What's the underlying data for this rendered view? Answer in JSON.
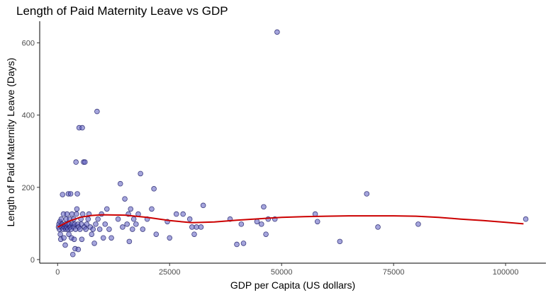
{
  "chart_data": {
    "type": "scatter",
    "title": "Length of Paid Maternity Leave vs GDP",
    "xlabel": "GDP per Capita (US dollars)",
    "ylabel": "Length of Paid Maternity Leave (Days)",
    "xlim": [
      -4000,
      109000
    ],
    "ylim": [
      -10,
      660
    ],
    "xticks": [
      0,
      25000,
      50000,
      75000,
      100000
    ],
    "xtick_labels": [
      "0",
      "25000",
      "50000",
      "75000",
      "100000"
    ],
    "yticks": [
      0,
      200,
      400,
      600
    ],
    "ytick_labels": [
      "0",
      "200",
      "400",
      "600"
    ],
    "grid": false,
    "colors": {
      "point_fill": "#5b5bc0",
      "point_stroke": "#1a1a66",
      "trend": "#cc0000",
      "axis": "#000000"
    },
    "points": [
      {
        "x": 200,
        "y": 90
      },
      {
        "x": 300,
        "y": 98
      },
      {
        "x": 400,
        "y": 84
      },
      {
        "x": 500,
        "y": 105
      },
      {
        "x": 600,
        "y": 70
      },
      {
        "x": 700,
        "y": 56
      },
      {
        "x": 800,
        "y": 112
      },
      {
        "x": 900,
        "y": 90
      },
      {
        "x": 1000,
        "y": 98
      },
      {
        "x": 1100,
        "y": 180
      },
      {
        "x": 1200,
        "y": 84
      },
      {
        "x": 1300,
        "y": 126
      },
      {
        "x": 1400,
        "y": 60
      },
      {
        "x": 1500,
        "y": 90
      },
      {
        "x": 1600,
        "y": 98
      },
      {
        "x": 1700,
        "y": 40
      },
      {
        "x": 1800,
        "y": 84
      },
      {
        "x": 1900,
        "y": 112
      },
      {
        "x": 2000,
        "y": 90
      },
      {
        "x": 2100,
        "y": 126
      },
      {
        "x": 2200,
        "y": 98
      },
      {
        "x": 2300,
        "y": 84
      },
      {
        "x": 2400,
        "y": 182
      },
      {
        "x": 2500,
        "y": 70
      },
      {
        "x": 2600,
        "y": 98
      },
      {
        "x": 2700,
        "y": 112
      },
      {
        "x": 2800,
        "y": 90
      },
      {
        "x": 2900,
        "y": 182
      },
      {
        "x": 3000,
        "y": 84
      },
      {
        "x": 3100,
        "y": 60
      },
      {
        "x": 3200,
        "y": 126
      },
      {
        "x": 3300,
        "y": 98
      },
      {
        "x": 3400,
        "y": 14
      },
      {
        "x": 3500,
        "y": 90
      },
      {
        "x": 3600,
        "y": 112
      },
      {
        "x": 3700,
        "y": 56
      },
      {
        "x": 3800,
        "y": 98
      },
      {
        "x": 3900,
        "y": 30
      },
      {
        "x": 4000,
        "y": 84
      },
      {
        "x": 4100,
        "y": 270
      },
      {
        "x": 4200,
        "y": 126
      },
      {
        "x": 4300,
        "y": 140
      },
      {
        "x": 4400,
        "y": 182
      },
      {
        "x": 4500,
        "y": 98
      },
      {
        "x": 4600,
        "y": 28
      },
      {
        "x": 4700,
        "y": 90
      },
      {
        "x": 4800,
        "y": 365
      },
      {
        "x": 5000,
        "y": 84
      },
      {
        "x": 5200,
        "y": 112
      },
      {
        "x": 5300,
        "y": 98
      },
      {
        "x": 5400,
        "y": 56
      },
      {
        "x": 5500,
        "y": 365
      },
      {
        "x": 5600,
        "y": 126
      },
      {
        "x": 5800,
        "y": 270
      },
      {
        "x": 6000,
        "y": 90
      },
      {
        "x": 6100,
        "y": 270
      },
      {
        "x": 6300,
        "y": 84
      },
      {
        "x": 6500,
        "y": 98
      },
      {
        "x": 6800,
        "y": 112
      },
      {
        "x": 7000,
        "y": 126
      },
      {
        "x": 7300,
        "y": 90
      },
      {
        "x": 7600,
        "y": 70
      },
      {
        "x": 7900,
        "y": 84
      },
      {
        "x": 8200,
        "y": 45
      },
      {
        "x": 8500,
        "y": 98
      },
      {
        "x": 8800,
        "y": 410
      },
      {
        "x": 9000,
        "y": 112
      },
      {
        "x": 9400,
        "y": 84
      },
      {
        "x": 9800,
        "y": 126
      },
      {
        "x": 10200,
        "y": 60
      },
      {
        "x": 10600,
        "y": 98
      },
      {
        "x": 11000,
        "y": 140
      },
      {
        "x": 11500,
        "y": 84
      },
      {
        "x": 12000,
        "y": 60
      },
      {
        "x": 13500,
        "y": 112
      },
      {
        "x": 14000,
        "y": 210
      },
      {
        "x": 14500,
        "y": 90
      },
      {
        "x": 15000,
        "y": 168
      },
      {
        "x": 15500,
        "y": 98
      },
      {
        "x": 15800,
        "y": 126
      },
      {
        "x": 16000,
        "y": 50
      },
      {
        "x": 16300,
        "y": 140
      },
      {
        "x": 16700,
        "y": 84
      },
      {
        "x": 17000,
        "y": 112
      },
      {
        "x": 17500,
        "y": 98
      },
      {
        "x": 18000,
        "y": 126
      },
      {
        "x": 18500,
        "y": 238
      },
      {
        "x": 19000,
        "y": 84
      },
      {
        "x": 20000,
        "y": 112
      },
      {
        "x": 21000,
        "y": 140
      },
      {
        "x": 21500,
        "y": 196
      },
      {
        "x": 22000,
        "y": 70
      },
      {
        "x": 24500,
        "y": 105
      },
      {
        "x": 25000,
        "y": 60
      },
      {
        "x": 26500,
        "y": 126
      },
      {
        "x": 28000,
        "y": 126
      },
      {
        "x": 29500,
        "y": 112
      },
      {
        "x": 30000,
        "y": 90
      },
      {
        "x": 30500,
        "y": 70
      },
      {
        "x": 31000,
        "y": 90
      },
      {
        "x": 32000,
        "y": 90
      },
      {
        "x": 32500,
        "y": 150
      },
      {
        "x": 38500,
        "y": 112
      },
      {
        "x": 40000,
        "y": 42
      },
      {
        "x": 41000,
        "y": 98
      },
      {
        "x": 41500,
        "y": 45
      },
      {
        "x": 44500,
        "y": 105
      },
      {
        "x": 45500,
        "y": 98
      },
      {
        "x": 46000,
        "y": 146
      },
      {
        "x": 46500,
        "y": 70
      },
      {
        "x": 47000,
        "y": 112
      },
      {
        "x": 48500,
        "y": 112
      },
      {
        "x": 49000,
        "y": 630
      },
      {
        "x": 57500,
        "y": 126
      },
      {
        "x": 58000,
        "y": 105
      },
      {
        "x": 63000,
        "y": 50
      },
      {
        "x": 69000,
        "y": 182
      },
      {
        "x": 71500,
        "y": 90
      },
      {
        "x": 80500,
        "y": 98
      },
      {
        "x": 104500,
        "y": 112
      }
    ],
    "trend": {
      "x": [
        0,
        2500,
        5000,
        7500,
        10000,
        15000,
        20000,
        25000,
        30000,
        35000,
        40000,
        45000,
        50000,
        55000,
        60000,
        65000,
        70000,
        75000,
        80000,
        85000,
        90000,
        95000,
        100000,
        104000
      ],
      "y": [
        90,
        106,
        117,
        122,
        124,
        123,
        117,
        108,
        102,
        104,
        109,
        113,
        117,
        119,
        120,
        121,
        121,
        121,
        120,
        117,
        112,
        108,
        103,
        99
      ]
    }
  }
}
